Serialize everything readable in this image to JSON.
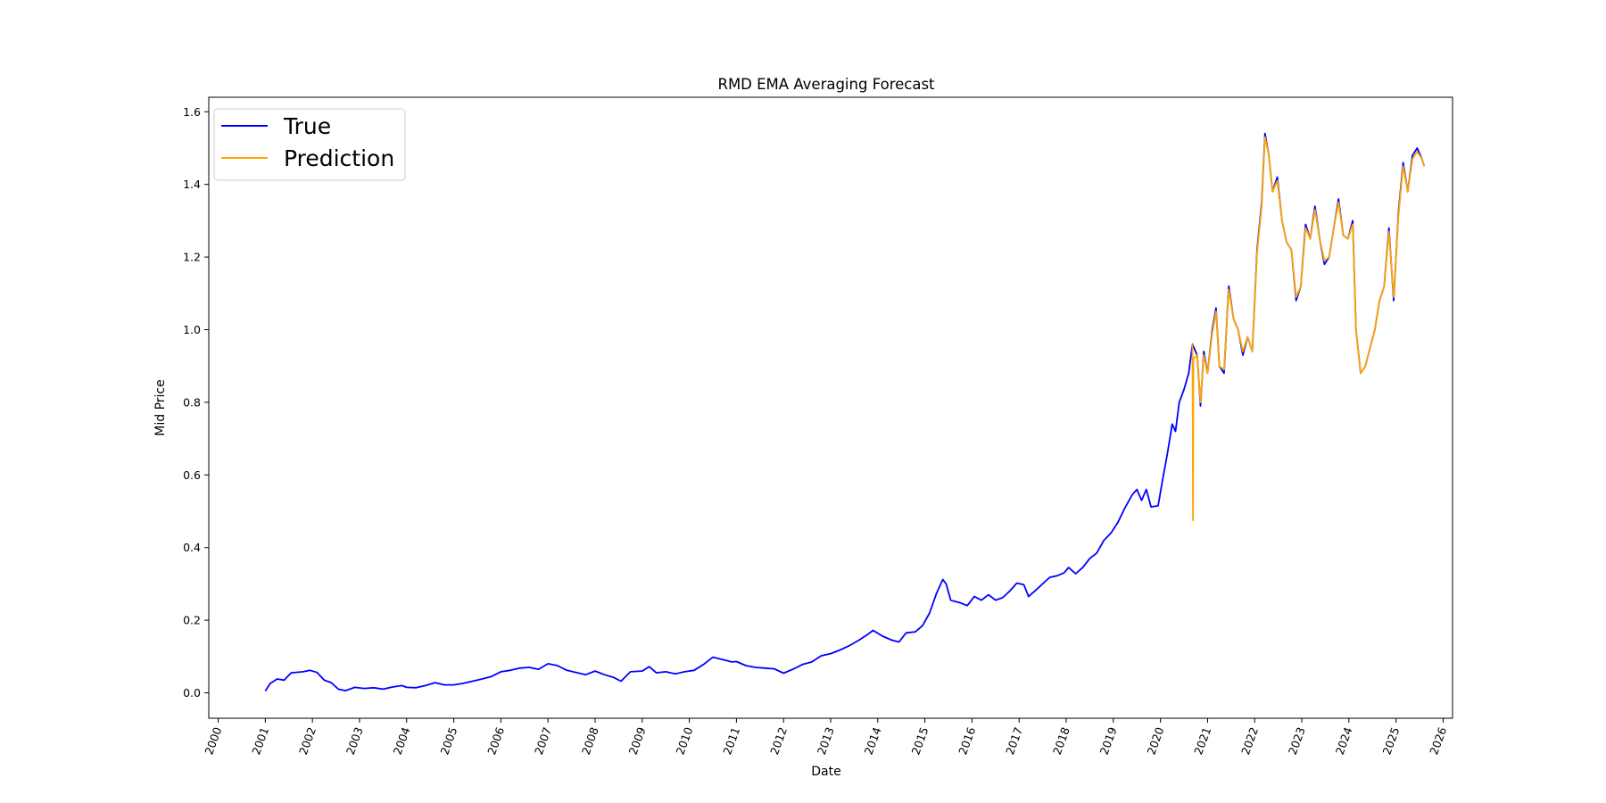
{
  "chart_data": {
    "type": "line",
    "title": "RMD EMA Averaging Forecast",
    "xlabel": "Date",
    "ylabel": "Mid Price",
    "xlim": [
      1999.8,
      2026.2
    ],
    "ylim": [
      -0.07,
      1.64
    ],
    "x_ticks": [
      "2000",
      "2001",
      "2002",
      "2003",
      "2004",
      "2005",
      "2006",
      "2007",
      "2008",
      "2009",
      "2010",
      "2011",
      "2012",
      "2013",
      "2014",
      "2015",
      "2016",
      "2017",
      "2018",
      "2019",
      "2020",
      "2021",
      "2022",
      "2023",
      "2024",
      "2025",
      "2026"
    ],
    "y_ticks": [
      "0.0",
      "0.2",
      "0.4",
      "0.6",
      "0.8",
      "1.0",
      "1.2",
      "1.4",
      "1.6"
    ],
    "grid": false,
    "legend": {
      "position": "top-left",
      "entries": [
        "True",
        "Prediction"
      ]
    },
    "series": [
      {
        "name": "True",
        "color": "#0000ff",
        "points": [
          [
            2001.0,
            0.005
          ],
          [
            2001.1,
            0.025
          ],
          [
            2001.25,
            0.038
          ],
          [
            2001.4,
            0.035
          ],
          [
            2001.55,
            0.055
          ],
          [
            2001.8,
            0.058
          ],
          [
            2001.95,
            0.062
          ],
          [
            2002.1,
            0.056
          ],
          [
            2002.25,
            0.035
          ],
          [
            2002.4,
            0.028
          ],
          [
            2002.55,
            0.01
          ],
          [
            2002.7,
            0.006
          ],
          [
            2002.9,
            0.015
          ],
          [
            2003.1,
            0.012
          ],
          [
            2003.3,
            0.014
          ],
          [
            2003.5,
            0.01
          ],
          [
            2003.7,
            0.016
          ],
          [
            2003.9,
            0.02
          ],
          [
            2004.0,
            0.015
          ],
          [
            2004.2,
            0.014
          ],
          [
            2004.4,
            0.02
          ],
          [
            2004.6,
            0.028
          ],
          [
            2004.8,
            0.022
          ],
          [
            2005.0,
            0.022
          ],
          [
            2005.2,
            0.026
          ],
          [
            2005.4,
            0.032
          ],
          [
            2005.6,
            0.038
          ],
          [
            2005.8,
            0.045
          ],
          [
            2006.0,
            0.058
          ],
          [
            2006.2,
            0.062
          ],
          [
            2006.4,
            0.068
          ],
          [
            2006.6,
            0.07
          ],
          [
            2006.8,
            0.065
          ],
          [
            2007.0,
            0.08
          ],
          [
            2007.2,
            0.075
          ],
          [
            2007.4,
            0.062
          ],
          [
            2007.6,
            0.056
          ],
          [
            2007.8,
            0.05
          ],
          [
            2008.0,
            0.06
          ],
          [
            2008.2,
            0.05
          ],
          [
            2008.4,
            0.042
          ],
          [
            2008.55,
            0.032
          ],
          [
            2008.75,
            0.058
          ],
          [
            2009.0,
            0.06
          ],
          [
            2009.15,
            0.072
          ],
          [
            2009.3,
            0.055
          ],
          [
            2009.5,
            0.058
          ],
          [
            2009.7,
            0.052
          ],
          [
            2009.9,
            0.058
          ],
          [
            2010.1,
            0.062
          ],
          [
            2010.3,
            0.078
          ],
          [
            2010.5,
            0.098
          ],
          [
            2010.7,
            0.092
          ],
          [
            2010.9,
            0.085
          ],
          [
            2011.0,
            0.086
          ],
          [
            2011.2,
            0.075
          ],
          [
            2011.4,
            0.07
          ],
          [
            2011.6,
            0.068
          ],
          [
            2011.8,
            0.066
          ],
          [
            2012.0,
            0.054
          ],
          [
            2012.2,
            0.065
          ],
          [
            2012.4,
            0.078
          ],
          [
            2012.6,
            0.085
          ],
          [
            2012.8,
            0.102
          ],
          [
            2013.0,
            0.108
          ],
          [
            2013.2,
            0.118
          ],
          [
            2013.4,
            0.13
          ],
          [
            2013.6,
            0.145
          ],
          [
            2013.8,
            0.162
          ],
          [
            2013.9,
            0.172
          ],
          [
            2014.1,
            0.156
          ],
          [
            2014.3,
            0.145
          ],
          [
            2014.45,
            0.14
          ],
          [
            2014.6,
            0.165
          ],
          [
            2014.8,
            0.168
          ],
          [
            2014.95,
            0.185
          ],
          [
            2015.1,
            0.22
          ],
          [
            2015.25,
            0.275
          ],
          [
            2015.38,
            0.312
          ],
          [
            2015.45,
            0.3
          ],
          [
            2015.55,
            0.255
          ],
          [
            2015.75,
            0.248
          ],
          [
            2015.9,
            0.24
          ],
          [
            2016.05,
            0.265
          ],
          [
            2016.2,
            0.255
          ],
          [
            2016.35,
            0.27
          ],
          [
            2016.5,
            0.255
          ],
          [
            2016.65,
            0.262
          ],
          [
            2016.8,
            0.28
          ],
          [
            2016.95,
            0.302
          ],
          [
            2017.1,
            0.298
          ],
          [
            2017.2,
            0.265
          ],
          [
            2017.35,
            0.282
          ],
          [
            2017.5,
            0.3
          ],
          [
            2017.65,
            0.318
          ],
          [
            2017.8,
            0.322
          ],
          [
            2017.95,
            0.33
          ],
          [
            2018.05,
            0.345
          ],
          [
            2018.2,
            0.328
          ],
          [
            2018.35,
            0.345
          ],
          [
            2018.5,
            0.37
          ],
          [
            2018.65,
            0.385
          ],
          [
            2018.8,
            0.42
          ],
          [
            2018.95,
            0.44
          ],
          [
            2019.1,
            0.47
          ],
          [
            2019.25,
            0.51
          ],
          [
            2019.4,
            0.545
          ],
          [
            2019.5,
            0.56
          ],
          [
            2019.6,
            0.53
          ],
          [
            2019.7,
            0.56
          ],
          [
            2019.8,
            0.512
          ],
          [
            2019.95,
            0.515
          ],
          [
            2020.05,
            0.59
          ],
          [
            2020.15,
            0.66
          ],
          [
            2020.25,
            0.74
          ],
          [
            2020.32,
            0.72
          ],
          [
            2020.4,
            0.8
          ],
          [
            2020.5,
            0.835
          ],
          [
            2020.6,
            0.88
          ],
          [
            2020.68,
            0.96
          ],
          [
            2020.78,
            0.93
          ],
          [
            2020.85,
            0.79
          ],
          [
            2020.92,
            0.94
          ],
          [
            2021.0,
            0.88
          ],
          [
            2021.1,
            1.0
          ],
          [
            2021.18,
            1.06
          ],
          [
            2021.25,
            0.9
          ],
          [
            2021.35,
            0.88
          ],
          [
            2021.45,
            1.12
          ],
          [
            2021.55,
            1.03
          ],
          [
            2021.65,
            1.0
          ],
          [
            2021.75,
            0.93
          ],
          [
            2021.85,
            0.98
          ],
          [
            2021.95,
            0.94
          ],
          [
            2022.05,
            1.22
          ],
          [
            2022.15,
            1.35
          ],
          [
            2022.22,
            1.54
          ],
          [
            2022.3,
            1.48
          ],
          [
            2022.38,
            1.38
          ],
          [
            2022.48,
            1.42
          ],
          [
            2022.58,
            1.3
          ],
          [
            2022.68,
            1.24
          ],
          [
            2022.78,
            1.22
          ],
          [
            2022.88,
            1.08
          ],
          [
            2022.98,
            1.12
          ],
          [
            2023.08,
            1.29
          ],
          [
            2023.18,
            1.25
          ],
          [
            2023.28,
            1.34
          ],
          [
            2023.38,
            1.25
          ],
          [
            2023.48,
            1.18
          ],
          [
            2023.58,
            1.2
          ],
          [
            2023.68,
            1.28
          ],
          [
            2023.78,
            1.36
          ],
          [
            2023.88,
            1.26
          ],
          [
            2023.98,
            1.25
          ],
          [
            2024.08,
            1.3
          ],
          [
            2024.15,
            1.0
          ],
          [
            2024.25,
            0.88
          ],
          [
            2024.35,
            0.9
          ],
          [
            2024.45,
            0.95
          ],
          [
            2024.55,
            1.0
          ],
          [
            2024.65,
            1.08
          ],
          [
            2024.75,
            1.12
          ],
          [
            2024.85,
            1.28
          ],
          [
            2024.95,
            1.08
          ],
          [
            2025.05,
            1.32
          ],
          [
            2025.15,
            1.46
          ],
          [
            2025.25,
            1.38
          ],
          [
            2025.35,
            1.48
          ],
          [
            2025.45,
            1.5
          ],
          [
            2025.55,
            1.47
          ],
          [
            2025.6,
            1.45
          ]
        ]
      },
      {
        "name": "Prediction",
        "color": "#ffa500",
        "points": [
          [
            2020.68,
            0.96
          ],
          [
            2020.69,
            0.475
          ],
          [
            2020.7,
            0.92
          ],
          [
            2020.78,
            0.93
          ],
          [
            2020.85,
            0.8
          ],
          [
            2020.92,
            0.93
          ],
          [
            2021.0,
            0.88
          ],
          [
            2021.1,
            0.99
          ],
          [
            2021.18,
            1.05
          ],
          [
            2021.25,
            0.9
          ],
          [
            2021.35,
            0.89
          ],
          [
            2021.45,
            1.11
          ],
          [
            2021.55,
            1.03
          ],
          [
            2021.65,
            1.0
          ],
          [
            2021.75,
            0.94
          ],
          [
            2021.85,
            0.98
          ],
          [
            2021.95,
            0.94
          ],
          [
            2022.05,
            1.21
          ],
          [
            2022.15,
            1.34
          ],
          [
            2022.22,
            1.53
          ],
          [
            2022.3,
            1.48
          ],
          [
            2022.38,
            1.38
          ],
          [
            2022.48,
            1.41
          ],
          [
            2022.58,
            1.3
          ],
          [
            2022.68,
            1.24
          ],
          [
            2022.78,
            1.22
          ],
          [
            2022.88,
            1.09
          ],
          [
            2022.98,
            1.12
          ],
          [
            2023.08,
            1.28
          ],
          [
            2023.18,
            1.25
          ],
          [
            2023.28,
            1.33
          ],
          [
            2023.38,
            1.25
          ],
          [
            2023.48,
            1.19
          ],
          [
            2023.58,
            1.2
          ],
          [
            2023.68,
            1.28
          ],
          [
            2023.78,
            1.35
          ],
          [
            2023.88,
            1.26
          ],
          [
            2023.98,
            1.25
          ],
          [
            2024.08,
            1.29
          ],
          [
            2024.15,
            1.0
          ],
          [
            2024.25,
            0.88
          ],
          [
            2024.35,
            0.9
          ],
          [
            2024.45,
            0.95
          ],
          [
            2024.55,
            1.0
          ],
          [
            2024.65,
            1.08
          ],
          [
            2024.75,
            1.12
          ],
          [
            2024.85,
            1.27
          ],
          [
            2024.95,
            1.09
          ],
          [
            2025.05,
            1.31
          ],
          [
            2025.15,
            1.45
          ],
          [
            2025.25,
            1.38
          ],
          [
            2025.35,
            1.47
          ],
          [
            2025.45,
            1.49
          ],
          [
            2025.55,
            1.47
          ],
          [
            2025.6,
            1.45
          ]
        ]
      }
    ]
  }
}
